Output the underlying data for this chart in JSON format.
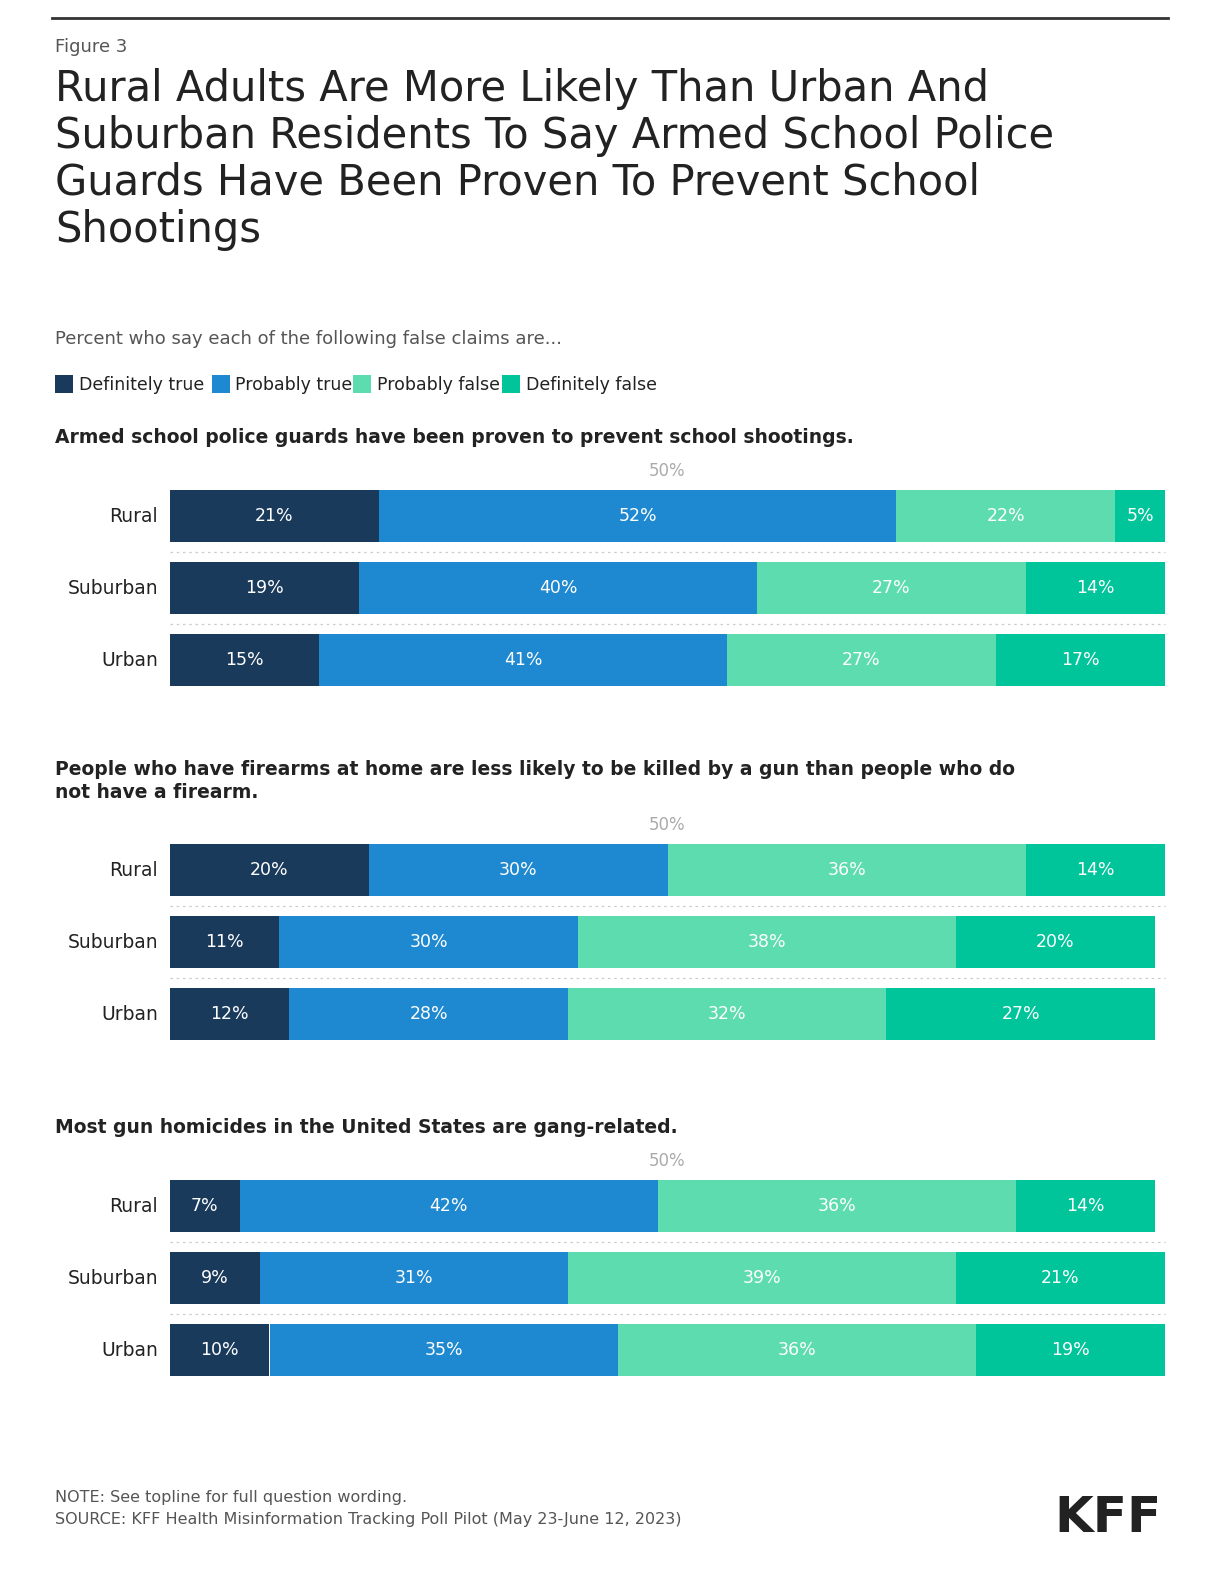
{
  "figure_label": "Figure 3",
  "title": "Rural Adults Are More Likely Than Urban And\nSuburban Residents To Say Armed School Police\nGuards Have Been Proven To Prevent School\nShootings",
  "subtitle": "Percent who say each of the following false claims are...",
  "legend_labels": [
    "Definitely true",
    "Probably true",
    "Probably false",
    "Definitely false"
  ],
  "legend_colors": [
    "#1a3a5c",
    "#1e88d0",
    "#5ddcb0",
    "#00c49a"
  ],
  "sections": [
    {
      "title": "Armed school police guards have been proven to prevent school shootings.",
      "rows": [
        {
          "label": "Rural",
          "values": [
            21,
            52,
            22,
            5
          ]
        },
        {
          "label": "Suburban",
          "values": [
            19,
            40,
            27,
            14
          ]
        },
        {
          "label": "Urban",
          "values": [
            15,
            41,
            27,
            17
          ]
        }
      ]
    },
    {
      "title": "People who have firearms at home are less likely to be killed by a gun than people who do\nnot have a firearm.",
      "rows": [
        {
          "label": "Rural",
          "values": [
            20,
            30,
            36,
            14
          ]
        },
        {
          "label": "Suburban",
          "values": [
            11,
            30,
            38,
            20
          ]
        },
        {
          "label": "Urban",
          "values": [
            12,
            28,
            32,
            27
          ]
        }
      ]
    },
    {
      "title": "Most gun homicides in the United States are gang-related.",
      "rows": [
        {
          "label": "Rural",
          "values": [
            7,
            42,
            36,
            14
          ]
        },
        {
          "label": "Suburban",
          "values": [
            9,
            31,
            39,
            21
          ]
        },
        {
          "label": "Urban",
          "values": [
            10,
            35,
            36,
            19
          ]
        }
      ]
    }
  ],
  "bar_colors": [
    "#1a3a5c",
    "#1e88d0",
    "#5ddcb0",
    "#00c49a"
  ],
  "background_color": "#ffffff",
  "note": "NOTE: See topline for full question wording.",
  "source": "SOURCE: KFF Health Misinformation Tracking Poll Pilot (May 23-June 12, 2023)",
  "top_line_color": "#333333",
  "separator_color": "#cccccc",
  "text_color_dark": "#222222",
  "text_color_mid": "#555555",
  "text_color_light": "#aaaaaa"
}
